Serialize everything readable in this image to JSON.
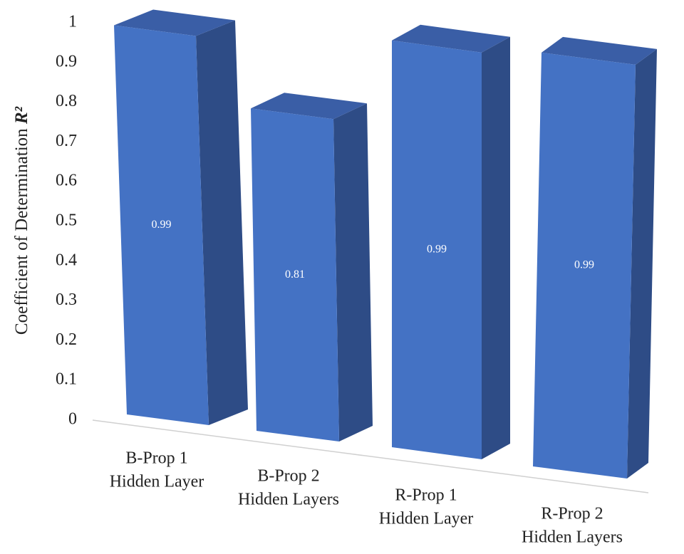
{
  "chart_data": {
    "type": "bar3d",
    "ylabel": "Coefficient of Determination",
    "ylabel_symbol": "R²",
    "categories": [
      [
        "B-Prop 1",
        "Hidden Layer"
      ],
      [
        "B-Prop 2",
        "Hidden Layers"
      ],
      [
        "R-Prop 1",
        "Hidden Layer"
      ],
      [
        "R-Prop 2",
        "Hidden Layers"
      ]
    ],
    "values": [
      0.99,
      0.81,
      0.99,
      0.99
    ],
    "color": "#4472c4",
    "ylim": [
      0,
      1
    ],
    "yticks": [
      0,
      0.1,
      0.2,
      0.3,
      0.4,
      0.5,
      0.6,
      0.7,
      0.8,
      0.9,
      1
    ],
    "grid": false
  }
}
